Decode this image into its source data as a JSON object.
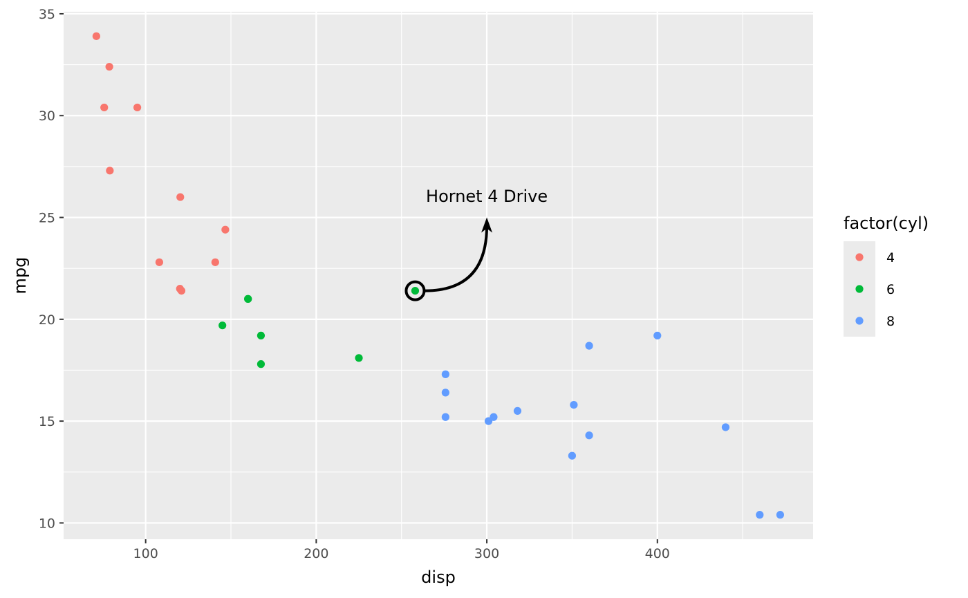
{
  "chart_data": {
    "type": "scatter",
    "title": "",
    "xlabel": "disp",
    "ylabel": "mpg",
    "xlim": [
      51.9,
      491.3
    ],
    "ylim": [
      9.2,
      35.1
    ],
    "x_ticks": [
      100,
      200,
      300,
      400
    ],
    "y_ticks": [
      10,
      15,
      20,
      25,
      30,
      35
    ],
    "grid": true,
    "panel_background": "#ebebeb",
    "legend": {
      "title": "factor(cyl)",
      "position": "right",
      "background": "#ebebeb"
    },
    "series": [
      {
        "name": "4",
        "color": "#F8766D",
        "points": [
          [
            108,
            22.8
          ],
          [
            146.7,
            24.4
          ],
          [
            140.8,
            22.8
          ],
          [
            78.7,
            32.4
          ],
          [
            75.7,
            30.4
          ],
          [
            71.1,
            33.9
          ],
          [
            120.1,
            21.5
          ],
          [
            79,
            27.3
          ],
          [
            120.3,
            26.0
          ],
          [
            95.1,
            30.4
          ],
          [
            121,
            21.4
          ]
        ]
      },
      {
        "name": "6",
        "color": "#00BA38",
        "points": [
          [
            160,
            21.0
          ],
          [
            160,
            21.0
          ],
          [
            258,
            21.4
          ],
          [
            225,
            18.1
          ],
          [
            167.6,
            19.2
          ],
          [
            167.6,
            17.8
          ],
          [
            145,
            19.7
          ]
        ]
      },
      {
        "name": "8",
        "color": "#619CFF",
        "points": [
          [
            360,
            18.7
          ],
          [
            360,
            14.3
          ],
          [
            275.8,
            16.4
          ],
          [
            275.8,
            17.3
          ],
          [
            275.8,
            15.2
          ],
          [
            472,
            10.4
          ],
          [
            460,
            10.4
          ],
          [
            440,
            14.7
          ],
          [
            318,
            15.5
          ],
          [
            304,
            15.2
          ],
          [
            350,
            13.3
          ],
          [
            400,
            19.2
          ],
          [
            351,
            15.8
          ],
          [
            301,
            15.0
          ]
        ]
      }
    ],
    "annotation": {
      "label": "Hornet 4 Drive",
      "point": [
        258,
        21.4
      ],
      "text_at": [
        300,
        26
      ],
      "arrow_tip": [
        300,
        25
      ]
    }
  }
}
